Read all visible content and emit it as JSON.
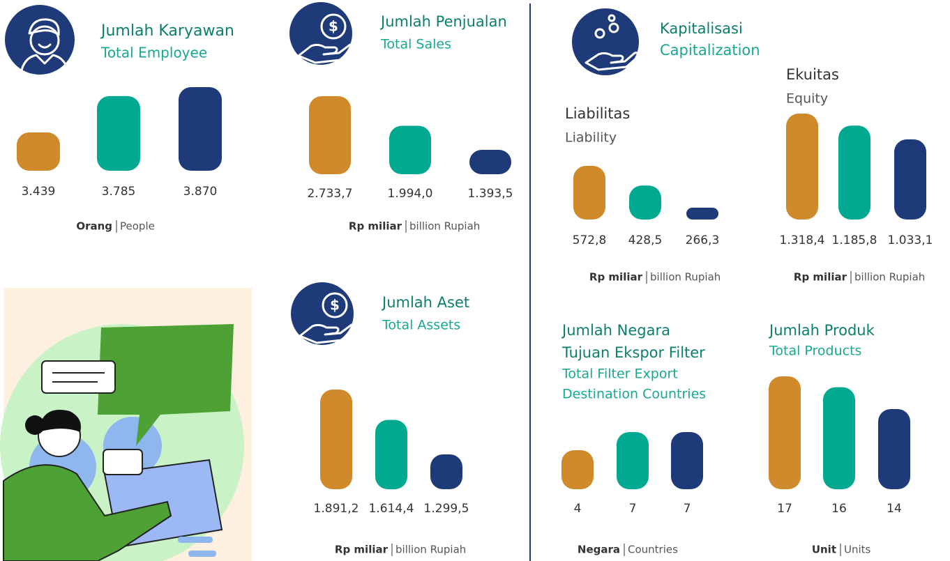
{
  "chart_data": [
    {
      "type": "bar",
      "title": "Jumlah Karyawan",
      "subtitle": "Total Employee",
      "values": [
        3439,
        3785,
        3870
      ],
      "value_labels": [
        "3.439",
        "3.785",
        "3.870"
      ],
      "colors": [
        "#cf8a2b",
        "#00a98f",
        "#1e3a78"
      ],
      "unit": [
        "Orang",
        "People"
      ]
    },
    {
      "type": "bar",
      "title": "Jumlah Penjualan",
      "subtitle": "Total Sales",
      "values": [
        2733.7,
        1994.0,
        1393.5
      ],
      "value_labels": [
        "2.733,7",
        "1.994,0",
        "1.393,5"
      ],
      "colors": [
        "#cf8a2b",
        "#00a98f",
        "#1e3a78"
      ],
      "unit": [
        "Rp miliar",
        "billion Rupiah"
      ]
    },
    {
      "type": "bar",
      "title": "Liabilitas",
      "subtitle": "Liability",
      "values": [
        572.8,
        428.5,
        266.3
      ],
      "value_labels": [
        "572,8",
        "428,5",
        "266,3"
      ],
      "colors": [
        "#cf8a2b",
        "#00a98f",
        "#1e3a78"
      ],
      "unit": [
        "Rp miliar",
        "billion Rupiah"
      ]
    },
    {
      "type": "bar",
      "title": "Ekuitas",
      "subtitle": "Equity",
      "values": [
        1318.4,
        1185.8,
        1033.1
      ],
      "value_labels": [
        "1.318,4",
        "1.185,8",
        "1.033,1"
      ],
      "colors": [
        "#cf8a2b",
        "#00a98f",
        "#1e3a78"
      ],
      "unit": [
        "Rp miliar",
        "billion Rupiah"
      ]
    },
    {
      "type": "bar",
      "title": "Jumlah Aset",
      "subtitle": "Total Assets",
      "values": [
        1891.2,
        1614.4,
        1299.5
      ],
      "value_labels": [
        "1.891,2",
        "1.614,4",
        "1.299,5"
      ],
      "colors": [
        "#cf8a2b",
        "#00a98f",
        "#1e3a78"
      ],
      "unit": [
        "Rp miliar",
        "billion Rupiah"
      ]
    },
    {
      "type": "bar",
      "title": [
        "Jumlah Negara",
        "Tujuan Ekspor Filter"
      ],
      "subtitle": [
        "Total Filter Export",
        "Destination Countries"
      ],
      "values": [
        4,
        7,
        7
      ],
      "colors": [
        "#cf8a2b",
        "#00a98f",
        "#1e3a78"
      ],
      "unit": [
        "Negara",
        "Countries"
      ]
    },
    {
      "type": "bar",
      "title": "Jumlah Produk",
      "subtitle": "Total Products",
      "values": [
        17,
        16,
        14
      ],
      "colors": [
        "#cf8a2b",
        "#00a98f",
        "#1e3a78"
      ],
      "unit": [
        "Unit",
        "Units"
      ]
    }
  ],
  "capitalization": {
    "title": "Kapitalisasi",
    "subtitle": "Capitalization"
  }
}
